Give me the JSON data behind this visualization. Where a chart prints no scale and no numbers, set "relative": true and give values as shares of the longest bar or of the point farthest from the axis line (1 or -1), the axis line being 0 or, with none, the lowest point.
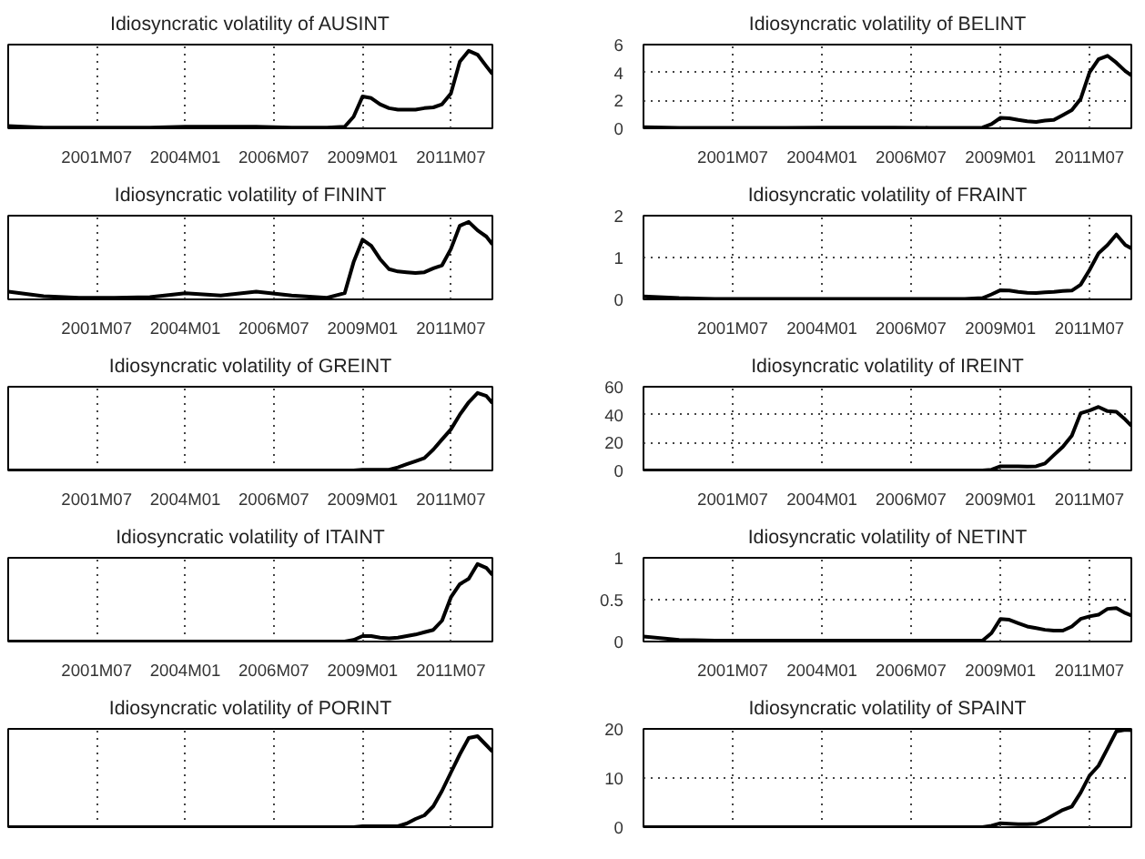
{
  "chart_data": [
    {
      "type": "line",
      "title": "Idiosyncratic volatility of AUSINT",
      "relative": true,
      "tick_labels": "x",
      "grid": "x",
      "color": "#000000",
      "x": [
        "1999-01",
        "2000-01",
        "2001-01",
        "2002-01",
        "2003-01",
        "2004-01",
        "2005-01",
        "2006-01",
        "2007-01",
        "2008-01",
        "2008-07",
        "2008-10",
        "2009-01",
        "2009-04",
        "2009-07",
        "2009-10",
        "2010-01",
        "2010-04",
        "2010-07",
        "2010-10",
        "2011-01",
        "2011-04",
        "2011-07",
        "2011-10",
        "2012-01",
        "2012-04",
        "2012-07",
        "2012-09"
      ],
      "values": [
        0.03,
        0.01,
        0.01,
        0.01,
        0.01,
        0.02,
        0.02,
        0.02,
        0.01,
        0.01,
        0.02,
        0.15,
        0.41,
        0.39,
        0.31,
        0.26,
        0.24,
        0.24,
        0.24,
        0.26,
        0.27,
        0.31,
        0.45,
        0.86,
        1.0,
        0.95,
        0.8,
        0.7
      ],
      "xlim": [
        "1999-01",
        "2012-09"
      ],
      "xticks": [
        {
          "value": "2001-07",
          "label": "2001M07"
        },
        {
          "value": "2004-01",
          "label": "2004M01"
        },
        {
          "value": "2006-07",
          "label": "2006M07"
        },
        {
          "value": "2009-01",
          "label": "2009M01"
        },
        {
          "value": "2011-07",
          "label": "2011M07"
        }
      ]
    },
    {
      "type": "line",
      "title": "Idiosyncratic volatility of BELINT",
      "grid": true,
      "color": "#000000",
      "x": [
        "1999-01",
        "2000-01",
        "2001-01",
        "2002-01",
        "2003-01",
        "2004-01",
        "2005-01",
        "2006-01",
        "2007-01",
        "2008-01",
        "2008-07",
        "2008-10",
        "2009-01",
        "2009-04",
        "2009-07",
        "2009-10",
        "2010-01",
        "2010-04",
        "2010-07",
        "2010-10",
        "2011-01",
        "2011-04",
        "2011-07",
        "2011-10",
        "2012-01",
        "2012-04",
        "2012-07",
        "2012-09"
      ],
      "values": [
        0.08,
        0.04,
        0.03,
        0.03,
        0.03,
        0.05,
        0.05,
        0.05,
        0.04,
        0.03,
        0.05,
        0.3,
        0.75,
        0.72,
        0.6,
        0.5,
        0.45,
        0.55,
        0.6,
        0.95,
        1.3,
        2.1,
        4.0,
        4.95,
        5.2,
        4.7,
        4.1,
        3.8
      ],
      "xlim": [
        "1999-01",
        "2012-09"
      ],
      "xticks": [
        {
          "value": "2001-07",
          "label": "2001M07"
        },
        {
          "value": "2004-01",
          "label": "2004M01"
        },
        {
          "value": "2006-07",
          "label": "2006M07"
        },
        {
          "value": "2009-01",
          "label": "2009M01"
        },
        {
          "value": "2011-07",
          "label": "2011M07"
        }
      ],
      "ylim": [
        0,
        6
      ],
      "yticks": [
        0,
        2,
        4,
        6
      ]
    },
    {
      "type": "line",
      "title": "Idiosyncratic volatility of FININT",
      "relative": true,
      "tick_labels": "x",
      "grid": "x",
      "color": "#000000",
      "x": [
        "1999-01",
        "2000-01",
        "2001-01",
        "2002-01",
        "2003-01",
        "2004-01",
        "2005-01",
        "2006-01",
        "2007-01",
        "2008-01",
        "2008-07",
        "2008-10",
        "2009-01",
        "2009-04",
        "2009-07",
        "2009-10",
        "2010-01",
        "2010-04",
        "2010-07",
        "2010-10",
        "2011-01",
        "2011-04",
        "2011-07",
        "2011-10",
        "2012-01",
        "2012-04",
        "2012-07",
        "2012-09"
      ],
      "values": [
        0.1,
        0.04,
        0.02,
        0.02,
        0.03,
        0.08,
        0.05,
        0.1,
        0.05,
        0.02,
        0.08,
        0.48,
        0.77,
        0.69,
        0.52,
        0.39,
        0.36,
        0.35,
        0.34,
        0.35,
        0.4,
        0.44,
        0.65,
        0.95,
        1.0,
        0.89,
        0.81,
        0.71
      ],
      "xlim": [
        "1999-01",
        "2012-09"
      ],
      "xticks": [
        {
          "value": "2001-07",
          "label": "2001M07"
        },
        {
          "value": "2004-01",
          "label": "2004M01"
        },
        {
          "value": "2006-07",
          "label": "2006M07"
        },
        {
          "value": "2009-01",
          "label": "2009M01"
        },
        {
          "value": "2011-07",
          "label": "2011M07"
        }
      ]
    },
    {
      "type": "line",
      "title": "Idiosyncratic volatility of FRAINT",
      "grid": true,
      "color": "#000000",
      "x": [
        "1999-01",
        "2000-01",
        "2001-01",
        "2002-01",
        "2003-01",
        "2004-01",
        "2005-01",
        "2006-01",
        "2007-01",
        "2008-01",
        "2008-07",
        "2008-10",
        "2009-01",
        "2009-04",
        "2009-07",
        "2009-10",
        "2010-01",
        "2010-04",
        "2010-07",
        "2010-10",
        "2011-01",
        "2011-04",
        "2011-07",
        "2011-10",
        "2012-01",
        "2012-04",
        "2012-07",
        "2012-09"
      ],
      "values": [
        0.07,
        0.03,
        0.01,
        0.01,
        0.01,
        0.01,
        0.01,
        0.01,
        0.01,
        0.01,
        0.03,
        0.12,
        0.22,
        0.21,
        0.18,
        0.16,
        0.15,
        0.17,
        0.18,
        0.2,
        0.21,
        0.35,
        0.7,
        1.1,
        1.3,
        1.55,
        1.3,
        1.22
      ],
      "xlim": [
        "1999-01",
        "2012-09"
      ],
      "xticks": [
        {
          "value": "2001-07",
          "label": "2001M07"
        },
        {
          "value": "2004-01",
          "label": "2004M01"
        },
        {
          "value": "2006-07",
          "label": "2006M07"
        },
        {
          "value": "2009-01",
          "label": "2009M01"
        },
        {
          "value": "2011-07",
          "label": "2011M07"
        }
      ],
      "ylim": [
        0,
        2
      ],
      "yticks": [
        0,
        1,
        2
      ]
    },
    {
      "type": "line",
      "title": "Idiosyncratic volatility of GREINT",
      "relative": true,
      "tick_labels": "x",
      "grid": "x",
      "color": "#000000",
      "x": [
        "1999-01",
        "2000-01",
        "2001-01",
        "2002-01",
        "2003-01",
        "2004-01",
        "2005-01",
        "2006-01",
        "2007-01",
        "2008-01",
        "2008-07",
        "2008-10",
        "2009-01",
        "2009-04",
        "2009-07",
        "2009-10",
        "2010-01",
        "2010-04",
        "2010-07",
        "2010-10",
        "2011-01",
        "2011-04",
        "2011-07",
        "2011-10",
        "2012-01",
        "2012-04",
        "2012-07",
        "2012-09"
      ],
      "values": [
        0,
        0,
        0,
        0,
        0,
        0,
        0,
        0,
        0,
        0,
        0,
        0,
        0.01,
        0.01,
        0.01,
        0.01,
        0.04,
        0.08,
        0.12,
        0.16,
        0.27,
        0.4,
        0.53,
        0.72,
        0.88,
        1.0,
        0.96,
        0.87
      ],
      "xlim": [
        "1999-01",
        "2012-09"
      ],
      "xticks": [
        {
          "value": "2001-07",
          "label": "2001M07"
        },
        {
          "value": "2004-01",
          "label": "2004M01"
        },
        {
          "value": "2006-07",
          "label": "2006M07"
        },
        {
          "value": "2009-01",
          "label": "2009M01"
        },
        {
          "value": "2011-07",
          "label": "2011M07"
        }
      ]
    },
    {
      "type": "line",
      "title": "Idiosyncratic volatility of IREINT",
      "grid": true,
      "color": "#000000",
      "x": [
        "1999-01",
        "2000-01",
        "2001-01",
        "2002-01",
        "2003-01",
        "2004-01",
        "2005-01",
        "2006-01",
        "2007-01",
        "2008-01",
        "2008-07",
        "2008-10",
        "2009-01",
        "2009-04",
        "2009-07",
        "2009-10",
        "2010-01",
        "2010-04",
        "2010-07",
        "2010-10",
        "2011-01",
        "2011-04",
        "2011-07",
        "2011-10",
        "2012-01",
        "2012-04",
        "2012-07",
        "2012-09"
      ],
      "values": [
        0,
        0,
        0,
        0,
        0,
        0,
        0,
        0,
        0,
        0,
        0,
        0.5,
        3,
        3,
        3,
        2.8,
        3,
        5,
        11,
        17,
        25,
        41,
        43,
        45.5,
        42.5,
        42,
        36.5,
        32
      ],
      "xlim": [
        "1999-01",
        "2012-09"
      ],
      "xticks": [
        {
          "value": "2001-07",
          "label": "2001M07"
        },
        {
          "value": "2004-01",
          "label": "2004M01"
        },
        {
          "value": "2006-07",
          "label": "2006M07"
        },
        {
          "value": "2009-01",
          "label": "2009M01"
        },
        {
          "value": "2011-07",
          "label": "2011M07"
        }
      ],
      "ylim": [
        0,
        60
      ],
      "yticks": [
        0,
        20,
        40,
        60
      ]
    },
    {
      "type": "line",
      "title": "Idiosyncratic volatility of ITAINT",
      "relative": true,
      "tick_labels": "x",
      "grid": "x",
      "color": "#000000",
      "x": [
        "1999-01",
        "2000-01",
        "2001-01",
        "2002-01",
        "2003-01",
        "2004-01",
        "2005-01",
        "2006-01",
        "2007-01",
        "2008-01",
        "2008-07",
        "2008-10",
        "2009-01",
        "2009-04",
        "2009-07",
        "2009-10",
        "2010-01",
        "2010-04",
        "2010-07",
        "2010-10",
        "2011-01",
        "2011-04",
        "2011-07",
        "2011-10",
        "2012-01",
        "2012-04",
        "2012-07",
        "2012-09"
      ],
      "values": [
        0,
        0,
        0,
        0,
        0,
        0,
        0,
        0,
        0,
        0,
        0,
        0.02,
        0.07,
        0.07,
        0.05,
        0.04,
        0.05,
        0.07,
        0.09,
        0.12,
        0.15,
        0.27,
        0.57,
        0.74,
        0.81,
        1.0,
        0.95,
        0.86
      ],
      "xlim": [
        "1999-01",
        "2012-09"
      ],
      "xticks": [
        {
          "value": "2001-07",
          "label": "2001M07"
        },
        {
          "value": "2004-01",
          "label": "2004M01"
        },
        {
          "value": "2006-07",
          "label": "2006M07"
        },
        {
          "value": "2009-01",
          "label": "2009M01"
        },
        {
          "value": "2011-07",
          "label": "2011M07"
        }
      ]
    },
    {
      "type": "line",
      "title": "Idiosyncratic volatility of NETINT",
      "grid": true,
      "color": "#000000",
      "x": [
        "1999-01",
        "2000-01",
        "2001-01",
        "2002-01",
        "2003-01",
        "2004-01",
        "2005-01",
        "2006-01",
        "2007-01",
        "2008-01",
        "2008-07",
        "2008-10",
        "2009-01",
        "2009-04",
        "2009-07",
        "2009-10",
        "2010-01",
        "2010-04",
        "2010-07",
        "2010-10",
        "2011-01",
        "2011-04",
        "2011-07",
        "2011-10",
        "2012-01",
        "2012-04",
        "2012-07",
        "2012-09"
      ],
      "values": [
        0.06,
        0.02,
        0.01,
        0.01,
        0.01,
        0.01,
        0.01,
        0.01,
        0.01,
        0.01,
        0.01,
        0.1,
        0.27,
        0.26,
        0.22,
        0.18,
        0.16,
        0.14,
        0.13,
        0.13,
        0.18,
        0.27,
        0.3,
        0.32,
        0.39,
        0.4,
        0.34,
        0.31
      ],
      "xlim": [
        "1999-01",
        "2012-09"
      ],
      "xticks": [
        {
          "value": "2001-07",
          "label": "2001M07"
        },
        {
          "value": "2004-01",
          "label": "2004M01"
        },
        {
          "value": "2006-07",
          "label": "2006M07"
        },
        {
          "value": "2009-01",
          "label": "2009M01"
        },
        {
          "value": "2011-07",
          "label": "2011M07"
        }
      ],
      "ylim": [
        0,
        1
      ],
      "yticks": [
        0,
        0.5,
        1
      ]
    },
    {
      "type": "line",
      "title": "Idiosyncratic volatility of PORINT",
      "relative": true,
      "tick_labels": false,
      "grid": "x",
      "color": "#000000",
      "x": [
        "1999-01",
        "2000-01",
        "2001-01",
        "2002-01",
        "2003-01",
        "2004-01",
        "2005-01",
        "2006-01",
        "2007-01",
        "2008-01",
        "2008-07",
        "2008-10",
        "2009-01",
        "2009-04",
        "2009-07",
        "2009-10",
        "2010-01",
        "2010-04",
        "2010-07",
        "2010-10",
        "2011-01",
        "2011-04",
        "2011-07",
        "2011-10",
        "2012-01",
        "2012-04",
        "2012-07",
        "2012-09"
      ],
      "values": [
        0,
        0,
        0,
        0,
        0,
        0,
        0,
        0,
        0,
        0,
        0,
        0,
        0.01,
        0.01,
        0.01,
        0.01,
        0.01,
        0.04,
        0.09,
        0.13,
        0.23,
        0.4,
        0.6,
        0.8,
        0.98,
        1.0,
        0.9,
        0.83
      ],
      "xlim": [
        "1999-01",
        "2012-09"
      ],
      "xticks": [
        {
          "value": "2001-07",
          "label": null
        },
        {
          "value": "2004-01",
          "label": null
        },
        {
          "value": "2006-07",
          "label": null
        },
        {
          "value": "2009-01",
          "label": null
        },
        {
          "value": "2011-07",
          "label": null
        }
      ]
    },
    {
      "type": "line",
      "title": "Idiosyncratic volatility of SPAINT",
      "tick_labels": "y",
      "grid": true,
      "color": "#000000",
      "x": [
        "1999-01",
        "2000-01",
        "2001-01",
        "2002-01",
        "2003-01",
        "2004-01",
        "2005-01",
        "2006-01",
        "2007-01",
        "2008-01",
        "2008-07",
        "2008-10",
        "2009-01",
        "2009-04",
        "2009-07",
        "2009-10",
        "2010-01",
        "2010-04",
        "2010-07",
        "2010-10",
        "2011-01",
        "2011-04",
        "2011-07",
        "2011-10",
        "2012-01",
        "2012-04",
        "2012-07",
        "2012-09"
      ],
      "values": [
        0,
        0,
        0,
        0,
        0,
        0,
        0,
        0,
        0,
        0,
        0,
        0.3,
        0.8,
        0.7,
        0.6,
        0.6,
        0.7,
        1.5,
        2.5,
        3.5,
        4.2,
        7,
        10.5,
        12.5,
        16,
        19.5,
        19.8,
        19.7
      ],
      "xlim": [
        "1999-01",
        "2012-09"
      ],
      "xticks": [
        {
          "value": "2001-07",
          "label": null
        },
        {
          "value": "2004-01",
          "label": null
        },
        {
          "value": "2006-07",
          "label": null
        },
        {
          "value": "2009-01",
          "label": null
        },
        {
          "value": "2011-07",
          "label": null
        }
      ],
      "ylim": [
        0,
        20
      ],
      "yticks": [
        0,
        10,
        20
      ]
    }
  ]
}
